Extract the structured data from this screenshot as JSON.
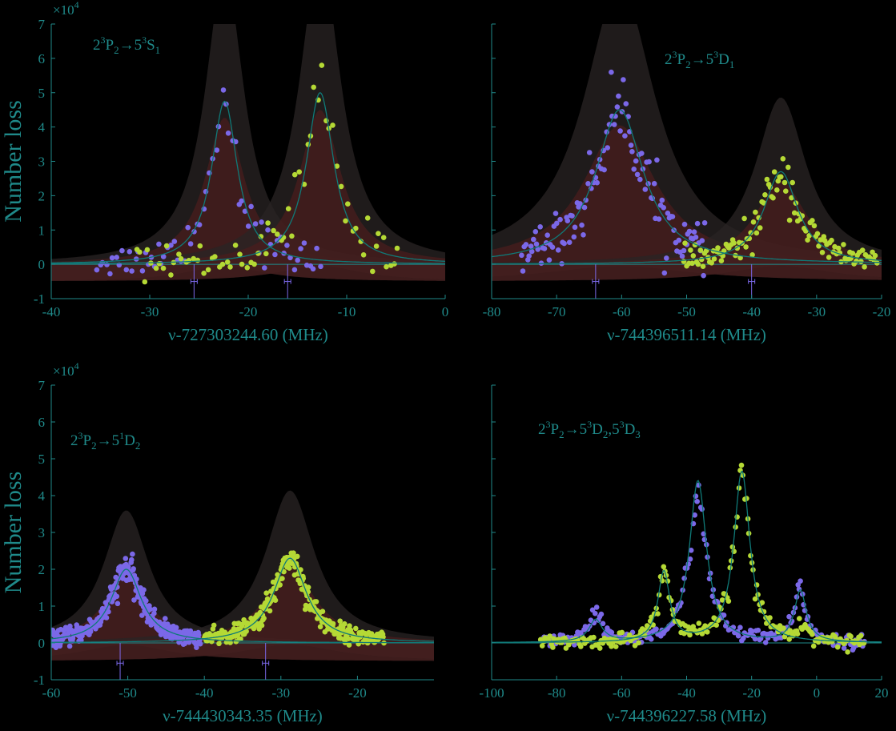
{
  "colors": {
    "axis": "#1f8a8a",
    "fit": "#0f7a78",
    "series_a": "#7b68e8",
    "series_b": "#b5d935",
    "envelope_outer": "#2a2424",
    "envelope_inner": "#4a1e1e"
  },
  "chart_data": [
    {
      "type": "scatter",
      "title": {
        "main": "2",
        "sup1": "3",
        "a": "P",
        "sub1": "2",
        "arrow": "→",
        "b": "5",
        "sup2": "3",
        "c": "S",
        "sub2": "1"
      },
      "xlabel": "ν-727303244.60 (MHz)",
      "ylabel": "Number loss",
      "y_multiplier": {
        "base": "×10",
        "exp": "4"
      },
      "xlim": [
        -40,
        0
      ],
      "ylim": [
        -1,
        7
      ],
      "xticks": [
        "-40",
        "-30",
        "-20",
        "-10",
        "0"
      ],
      "yticks": [
        "-1",
        "0",
        "1",
        "2",
        "3",
        "4",
        "5",
        "6",
        "7"
      ],
      "xtick_values": [
        -40,
        -30,
        -20,
        -10,
        0
      ],
      "show_xticks": true,
      "show_yticks": true,
      "peaks": [
        {
          "center": -22.4,
          "amplitude": 4.75,
          "width": 1.6
        },
        {
          "center": -12.7,
          "amplitude": 5.0,
          "width": 1.7
        }
      ],
      "series": [
        {
          "color": "series_a",
          "x_range": [
            -35.5,
            -12.5
          ],
          "center": -22.4,
          "amplitude": 4.8,
          "width": 1.6,
          "noise": 0.45,
          "count": 70
        },
        {
          "color": "series_b",
          "x_range": [
            -31.5,
            -4.5
          ],
          "center": -12.7,
          "amplitude": 5.0,
          "width": 1.8,
          "noise": 0.5,
          "count": 70
        }
      ],
      "markers": [
        {
          "x": -25.5,
          "y": -0.5
        },
        {
          "x": -16.0,
          "y": -0.5
        }
      ]
    },
    {
      "type": "scatter",
      "title": {
        "main": "2",
        "sup1": "3",
        "a": "P",
        "sub1": "2",
        "arrow": "→",
        "b": "5",
        "sup2": "3",
        "c": "D",
        "sub2": "1"
      },
      "xlabel": "ν-744396511.14 (MHz)",
      "ylabel": "",
      "xlim": [
        -80,
        -20
      ],
      "ylim": [
        -1,
        7
      ],
      "xticks": [
        "-80",
        "-70",
        "-60",
        "-50",
        "-40",
        "-30",
        "-20"
      ],
      "yticks": [],
      "xtick_values": [
        -80,
        -70,
        -60,
        -50,
        -40,
        -30,
        -20
      ],
      "show_xticks": true,
      "show_yticks": false,
      "peaks": [
        {
          "center": -60.3,
          "amplitude": 4.5,
          "width": 4.5
        },
        {
          "center": -35.5,
          "amplitude": 2.7,
          "width": 3.2
        }
      ],
      "series": [
        {
          "color": "series_a",
          "x_range": [
            -75.5,
            -47.0
          ],
          "center": -60.3,
          "amplitude": 4.5,
          "width": 4.5,
          "noise": 0.5,
          "count": 120
        },
        {
          "color": "series_b",
          "x_range": [
            -50.5,
            -20.5
          ],
          "center": -35.5,
          "amplitude": 2.7,
          "width": 3.2,
          "noise": 0.35,
          "count": 120
        }
      ],
      "markers": [
        {
          "x": -64.0,
          "y": -0.5
        },
        {
          "x": -40.0,
          "y": -0.5
        }
      ]
    },
    {
      "type": "scatter",
      "title": {
        "main": "2",
        "sup1": "3",
        "a": "P",
        "sub1": "2",
        "arrow": "→",
        "b": "5",
        "sup2": "1",
        "c": "D",
        "sub2": "2"
      },
      "xlabel": "ν-744430343.35 (MHz)",
      "ylabel": "Number loss",
      "y_multiplier": {
        "base": "×10",
        "exp": "4"
      },
      "xlim": [
        -60,
        -10
      ],
      "ylim": [
        -1,
        7
      ],
      "xticks": [
        "-60",
        "-50",
        "-40",
        "-30",
        "-20"
      ],
      "yticks": [
        "-1",
        "0",
        "1",
        "2",
        "3",
        "4",
        "5",
        "6",
        "7"
      ],
      "xtick_values": [
        -60,
        -50,
        -40,
        -30,
        -20
      ],
      "show_xticks": true,
      "show_yticks": true,
      "peaks": [
        {
          "center": -50.2,
          "amplitude": 2.0,
          "width": 2.4
        },
        {
          "center": -28.8,
          "amplitude": 2.3,
          "width": 2.6
        }
      ],
      "series": [
        {
          "color": "series_a",
          "x_range": [
            -60.0,
            -40.5
          ],
          "center": -50.2,
          "amplitude": 2.0,
          "width": 2.4,
          "noise": 0.2,
          "count": 320
        },
        {
          "color": "series_b",
          "x_range": [
            -40.0,
            -16.5
          ],
          "center": -28.8,
          "amplitude": 2.3,
          "width": 2.6,
          "noise": 0.2,
          "count": 320
        }
      ],
      "markers": [
        {
          "x": -51.0,
          "y": -0.55
        },
        {
          "x": -32.0,
          "y": -0.55
        }
      ]
    },
    {
      "type": "scatter",
      "title": {
        "main": "2",
        "sup1": "3",
        "a": "P",
        "sub1": "2",
        "arrow": "→",
        "b": "5",
        "sup2": "3",
        "c": "D",
        "sub2": "2",
        "sep": ",",
        "d": "5",
        "sup3": "3",
        "e": "D",
        "sub3": "3"
      },
      "xlabel": "ν-744396227.58 (MHz)",
      "ylabel": "",
      "xlim": [
        -100,
        20
      ],
      "ylim": [
        -1,
        7
      ],
      "xticks": [
        "-100",
        "-80",
        "-60",
        "-40",
        "-20",
        "0",
        "20"
      ],
      "yticks": [],
      "xtick_values": [
        -100,
        -80,
        -60,
        -40,
        -20,
        0,
        20
      ],
      "show_xticks": true,
      "show_yticks": false,
      "fits": [
        {
          "peaks": [
            {
              "center": -68.0,
              "amplitude": 0.6,
              "width": 2.5
            },
            {
              "center": -36.5,
              "amplitude": 4.4,
              "width": 3.2
            },
            {
              "center": -5.0,
              "amplitude": 1.4,
              "width": 2.2
            }
          ]
        },
        {
          "peaks": [
            {
              "center": -47.0,
              "amplitude": 1.9,
              "width": 2.2
            },
            {
              "center": -23.0,
              "amplitude": 4.65,
              "width": 3.0
            }
          ]
        }
      ],
      "series": [
        {
          "color": "series_a",
          "x_range": [
            -85.0,
            15.0
          ],
          "multi": [
            {
              "center": -68.0,
              "amplitude": 0.7,
              "width": 2.5
            },
            {
              "center": -36.5,
              "amplitude": 4.1,
              "width": 3.2
            },
            {
              "center": -5.0,
              "amplitude": 1.4,
              "width": 2.2
            }
          ],
          "noise": 0.18,
          "count": 220
        },
        {
          "color": "series_b",
          "x_range": [
            -85.0,
            15.0
          ],
          "multi": [
            {
              "center": -47.0,
              "amplitude": 1.9,
              "width": 2.2
            },
            {
              "center": -23.0,
              "amplitude": 4.5,
              "width": 3.0
            },
            {
              "center": -5.0,
              "amplitude": 0.3,
              "width": 3.0
            }
          ],
          "noise": 0.18,
          "count": 220
        }
      ],
      "markers": []
    }
  ]
}
